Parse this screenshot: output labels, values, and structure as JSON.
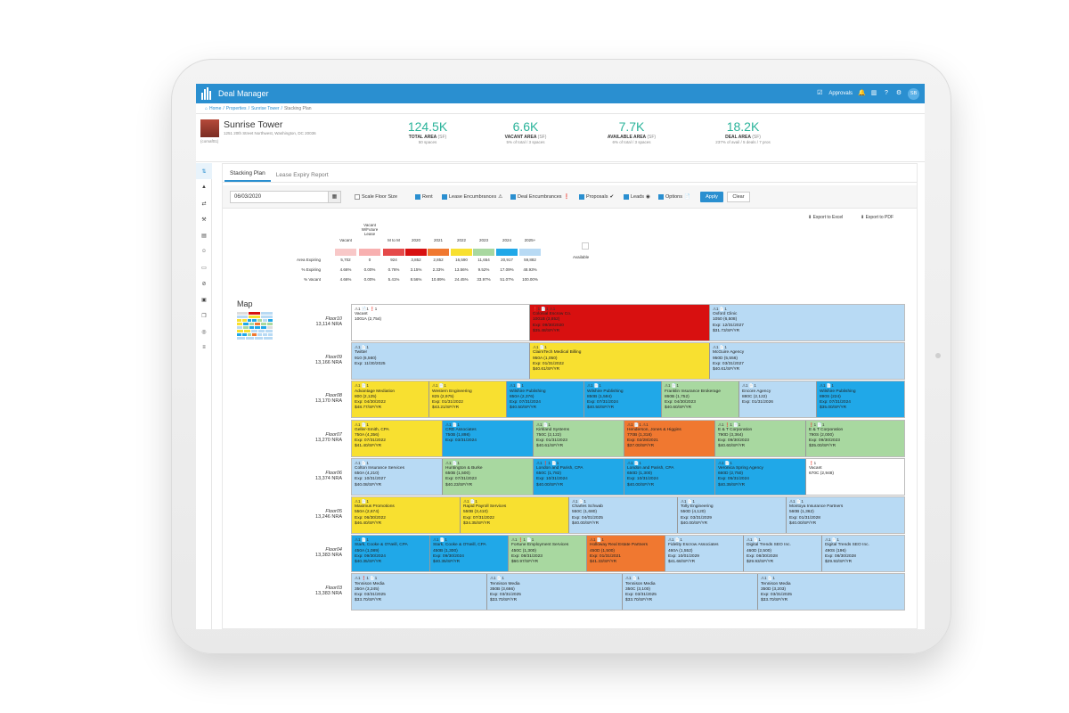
{
  "app": {
    "title": "Deal Manager",
    "approvals": "Approvals",
    "avatar": "SB"
  },
  "breadcrumb": [
    "Home",
    "Properties",
    "Sunrise Tower",
    "Stacking Plan"
  ],
  "property": {
    "name": "Sunrise Tower",
    "address": "1251 20th Street Northwest, Washington, DC 20036",
    "id": "(comaf01)"
  },
  "kpis": [
    {
      "value": "124.5K",
      "label": "TOTAL AREA",
      "unit": "(SF)",
      "sub": "50 spaces"
    },
    {
      "value": "6.6K",
      "label": "VACANT AREA",
      "unit": "(SF)",
      "sub": "5% of total / 3 spaces"
    },
    {
      "value": "7.7K",
      "label": "AVAILABLE AREA",
      "unit": "(SF)",
      "sub": "6% of total / 3 spaces"
    },
    {
      "value": "18.2K",
      "label": "DEAL AREA",
      "unit": "(SF)",
      "sub": "237% of avail / 5 deals / 7 pros"
    }
  ],
  "tabs": [
    "Stacking Plan",
    "Lease Expiry Report"
  ],
  "filters": {
    "date": "06/03/2020",
    "scale": "Scale Floor Size",
    "items": [
      "Rent",
      "Lease Encumbrances",
      "Deal Encumbrances",
      "Proposals",
      "Leads",
      "Options"
    ],
    "apply": "Apply",
    "clear": "Clear"
  },
  "exports": {
    "excel": "Export to Excel",
    "pdf": "Export to PDF"
  },
  "legend": {
    "headers": [
      "Vacant",
      "Vacant W/Future Lease",
      "M to M",
      "2020",
      "2021",
      "2022",
      "2023",
      "2024",
      "2025+"
    ],
    "colors": [
      "#f8c8c8",
      "#f8b0b0",
      "#e54a4a",
      "#d81010",
      "#f07830",
      "#f8e030",
      "#a8d8a0",
      "#20a8e8",
      "#b8daf4"
    ],
    "rows": [
      {
        "label": "Area Expiring",
        "values": [
          "5,702",
          "0",
          "924",
          "3,852",
          "2,852",
          "16,590",
          "11,654",
          "20,917",
          "59,882"
        ]
      },
      {
        "label": "% Expiring",
        "values": [
          "4.66%",
          "0.00%",
          "0.76%",
          "3.15%",
          "2.33%",
          "13.56%",
          "9.52%",
          "17.09%",
          "48.93%"
        ]
      },
      {
        "label": "% Vacant",
        "values": [
          "4.66%",
          "0.00%",
          "5.41%",
          "8.56%",
          "10.89%",
          "24.45%",
          "33.97%",
          "51.07%",
          "100.00%"
        ]
      }
    ],
    "available": "Available"
  },
  "map_title": "Map",
  "floors": [
    {
      "name": "Floor10",
      "nra": "13,114 NRA",
      "cells": [
        {
          "w": 200,
          "c": "#ffffff",
          "ic": "⚠1 📄1 ❗1",
          "l": [
            "Vacant",
            "1001A (2,754)"
          ]
        },
        {
          "w": 202,
          "c": "#d81010",
          "ic": "❗1 📄1 ⚠1",
          "l": [
            "Colonial Escrow Co.",
            "1001B (3,852)",
            "Exp: 09/30/2020",
            "$35.48/SF/YR"
          ]
        },
        {
          "w": 218,
          "c": "#b8daf4",
          "ic": "⚠1 📄1",
          "l": [
            "Oxford Clinic",
            "1050 (6,508)",
            "Exp: 12/31/2027",
            "$31.73/SF/YR"
          ]
        }
      ]
    },
    {
      "name": "Floor09",
      "nra": "13,166 NRA",
      "cells": [
        {
          "w": 200,
          "c": "#b8daf4",
          "ic": "⚠1 📄1",
          "l": [
            "Twitter",
            "910 (6,560)",
            "Exp: 11/30/2025"
          ]
        },
        {
          "w": 202,
          "c": "#f8e030",
          "ic": "⚠1 📄1",
          "l": [
            "ClaimTech Medical Billing",
            "950A (1,050)",
            "Exp: 01/31/2022",
            "$40.61/SF/YR"
          ]
        },
        {
          "w": 218,
          "c": "#b8daf4",
          "ic": "⚠1 📄1",
          "l": [
            "McGuire Agency",
            "950D (5,556)",
            "Exp: 03/31/2027",
            "$40.61/SF/YR"
          ]
        }
      ]
    },
    {
      "name": "Floor08",
      "nra": "13,170 NRA",
      "cells": [
        {
          "w": 87,
          "c": "#f8e030",
          "ic": "⚠1 📄1",
          "l": [
            "Advantage Mediation",
            "800 (2,125)",
            "Exp: 04/30/2022",
            "$48.77/SF/YR"
          ]
        },
        {
          "w": 87,
          "c": "#f8e030",
          "ic": "⚠1 📄1",
          "l": [
            "Western Engineering",
            "825 (2,975)",
            "Exp: 01/31/2022",
            "$43.21/SF/YR"
          ]
        },
        {
          "w": 87,
          "c": "#20a8e8",
          "ic": "⚠1 📄1",
          "l": [
            "Wilshire Publishing",
            "850A (2,376)",
            "Exp: 07/31/2024",
            "$40.50/SF/YR"
          ]
        },
        {
          "w": 87,
          "c": "#20a8e8",
          "ic": "⚠1 📄1",
          "l": [
            "Wilshire Publishing",
            "850B (1,594)",
            "Exp: 07/31/2024",
            "$40.50/SF/YR"
          ]
        },
        {
          "w": 87,
          "c": "#a8d8a0",
          "ic": "⚠1 📄1",
          "l": [
            "Franklin Insurance Brokerage",
            "860B (1,752)",
            "Exp: 04/30/2023",
            "$40.60/SF/YR"
          ]
        },
        {
          "w": 87,
          "c": "#b8daf4",
          "ic": "⚠1 📄1",
          "l": [
            "Encore Agency",
            "880C (2,122)",
            "Exp: 01/31/2026"
          ]
        },
        {
          "w": 98,
          "c": "#20a8e8",
          "ic": "⚠1 📄1",
          "l": [
            "Wilshire Publishing",
            "890S (224)",
            "Exp: 07/31/2024",
            "$35.00/SF/YR"
          ]
        }
      ]
    },
    {
      "name": "Floor07",
      "nra": "13,270 NRA",
      "cells": [
        {
          "w": 102,
          "c": "#f8e030",
          "ic": "⚠1 📄1",
          "l": [
            "Geller-Smith, CPA",
            "750A (4,356)",
            "Exp: 07/31/2022",
            "$41.40/SF/YR"
          ]
        },
        {
          "w": 102,
          "c": "#20a8e8",
          "ic": "⚠1 📄1",
          "l": [
            "CRD Associates",
            "750B (1,898)",
            "Exp: 03/31/2024"
          ]
        },
        {
          "w": 102,
          "c": "#a8d8a0",
          "ic": "⚠1 📄1",
          "l": [
            "Kirkland Systems",
            "750C (2,122)",
            "Exp: 01/31/2023",
            "$40.61/SF/YR"
          ]
        },
        {
          "w": 102,
          "c": "#f07830",
          "ic": "⚠1 📄1 ⚠1",
          "l": [
            "Henderson, Jones & Higgins",
            "770B (1,318)",
            "Exp: 02/28/2021",
            "$37.00/SF/YR"
          ]
        },
        {
          "w": 102,
          "c": "#a8d8a0",
          "ic": "⚠1 ❗1 📄1",
          "l": [
            "E & T Corporation",
            "790D (3,364)",
            "Exp: 09/30/2023",
            "$40.60/SF/YR"
          ]
        },
        {
          "w": 110,
          "c": "#a8d8a0",
          "ic": "❗1 📄1",
          "l": [
            "E & T Corporation",
            "790S (2,000)",
            "Exp: 09/30/2023",
            "$35.00/SF/YR"
          ]
        }
      ]
    },
    {
      "name": "Floor06",
      "nra": "13,374 NRA",
      "cells": [
        {
          "w": 102,
          "c": "#b8daf4",
          "ic": "⚠1 📄1",
          "l": [
            "Colton Insurance Services",
            "650A (4,210)",
            "Exp: 10/31/2027",
            "$40.08/SF/YR"
          ]
        },
        {
          "w": 102,
          "c": "#a8d8a0",
          "ic": "⚠1 📄1",
          "l": [
            "Huntington & Burke",
            "650B (1,500)",
            "Exp: 07/31/2023",
            "$40.23/SF/YR"
          ]
        },
        {
          "w": 102,
          "c": "#20a8e8",
          "ic": "⚠1 ❗1 📄1",
          "l": [
            "London and Parish, CPA",
            "650C (1,782)",
            "Exp: 10/31/2024",
            "$40.00/SF/YR"
          ]
        },
        {
          "w": 102,
          "c": "#20a8e8",
          "ic": "⚠1 📄1",
          "l": [
            "London and Parish, CPA",
            "650D (1,300)",
            "Exp: 10/31/2024",
            "$40.00/SF/YR"
          ]
        },
        {
          "w": 102,
          "c": "#20a8e8",
          "ic": "⚠1 📄1",
          "l": [
            "Veronica Spring Agency",
            "660D (2,750)",
            "Exp: 05/31/2024",
            "$40.39/SF/YR"
          ]
        },
        {
          "w": 110,
          "c": "#ffffff",
          "ic": "❗1",
          "l": [
            "Vacant",
            "670C (2,948)"
          ]
        }
      ]
    },
    {
      "name": "Floor05",
      "nra": "13,246 NRA",
      "cells": [
        {
          "w": 122,
          "c": "#f8e030",
          "ic": "⚠1 📄1",
          "l": [
            "Maximus Promotions",
            "550A (2,674)",
            "Exp: 06/30/2022",
            "$46.40/SF/YR"
          ]
        },
        {
          "w": 122,
          "c": "#f8e030",
          "ic": "⚠1 📄1",
          "l": [
            "Rapid Payroll Services",
            "550B (3,410)",
            "Exp: 07/31/2022",
            "$34.35/SF/YR"
          ]
        },
        {
          "w": 122,
          "c": "#b8daf4",
          "ic": "⚠1 📄1",
          "l": [
            "Charles Schwab",
            "550C (1,680)",
            "Exp: 04/01/2025",
            "$40.00/SF/YR"
          ]
        },
        {
          "w": 122,
          "c": "#b8daf4",
          "ic": "⚠1 📄1",
          "l": [
            "Tolly Engineering",
            "550D (4,120)",
            "Exp: 03/31/2029",
            "$40.00/SF/YR"
          ]
        },
        {
          "w": 132,
          "c": "#b8daf4",
          "ic": "⚠1 📄1",
          "l": [
            "Montoya Insurance Partners",
            "560B (1,362)",
            "Exp: 01/31/2028",
            "$40.00/SF/YR"
          ]
        }
      ]
    },
    {
      "name": "Floor04",
      "nra": "13,383 NRA",
      "cells": [
        {
          "w": 88,
          "c": "#20a8e8",
          "ic": "⚠1 📄1",
          "l": [
            "Stark, Cooke & O'Neill, CPA",
            "450A (1,089)",
            "Exp: 09/30/2024",
            "$40.35/SF/YR"
          ]
        },
        {
          "w": 88,
          "c": "#20a8e8",
          "ic": "⚠1 📄1",
          "l": [
            "Stark, Cooke & O'Neill, CPA",
            "450B (1,300)",
            "Exp: 09/30/2024",
            "$40.35/SF/YR"
          ]
        },
        {
          "w": 88,
          "c": "#a8d8a0",
          "ic": "⚠1 ❗1 📄1",
          "l": [
            "Fortune Employment Services",
            "450C (1,300)",
            "Exp: 08/31/2023",
            "$60.97/SF/YR"
          ]
        },
        {
          "w": 88,
          "c": "#f07830",
          "ic": "⚠1 📄1",
          "l": [
            "Holloway Real Estate Partners",
            "450D (1,500)",
            "Exp: 01/31/2021",
            "$41.33/SF/YR"
          ]
        },
        {
          "w": 88,
          "c": "#b8daf4",
          "ic": "⚠1 📄1",
          "l": [
            "Fidelity Escrow Associates",
            "460A (1,552)",
            "Exp: 10/01/2029",
            "$41.68/SF/YR"
          ]
        },
        {
          "w": 88,
          "c": "#b8daf4",
          "ic": "⚠1 📄1",
          "l": [
            "Digital Trends SEO Inc.",
            "460D (2,500)",
            "Exp: 08/30/2028",
            "$29.93/SF/YR"
          ]
        },
        {
          "w": 92,
          "c": "#b8daf4",
          "ic": "⚠1 📄1",
          "l": [
            "Digital Trends SEO Inc.",
            "490S (196)",
            "Exp: 08/30/2028",
            "$29.93/SF/YR"
          ]
        }
      ]
    },
    {
      "name": "Floor03",
      "nra": "13,383 NRA",
      "cells": [
        {
          "w": 152,
          "c": "#b8daf4",
          "ic": "⚠1 ❗1 📄1",
          "l": [
            "Tennison Media",
            "350A (3,245)",
            "Exp: 03/31/2025",
            "$33.70/SF/YR"
          ]
        },
        {
          "w": 152,
          "c": "#b8daf4",
          "ic": "⚠1 📄1",
          "l": [
            "Tennison Media",
            "350B (3,666)",
            "Exp: 03/31/2025",
            "$33.70/SF/YR"
          ]
        },
        {
          "w": 152,
          "c": "#b8daf4",
          "ic": "⚠1 📄1",
          "l": [
            "Tennison Media",
            "350C (3,100)",
            "Exp: 03/31/2025",
            "$33.70/SF/YR"
          ]
        },
        {
          "w": 164,
          "c": "#b8daf4",
          "ic": "⚠1 📄1",
          "l": [
            "Tennison Media",
            "350D (3,203)",
            "Exp: 03/31/2025",
            "$33.70/SF/YR"
          ]
        }
      ]
    }
  ]
}
